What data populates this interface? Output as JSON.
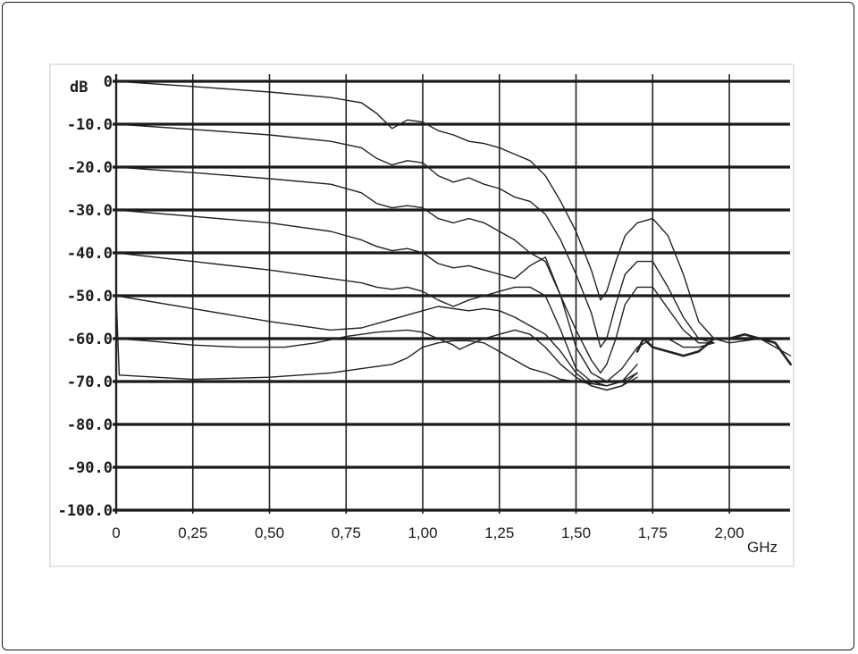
{
  "chart_data": {
    "type": "line",
    "title": "",
    "ylabel": "dB",
    "xlabel": "GHz",
    "x_unit": "GHz",
    "y_unit": "dB",
    "xlim": [
      0,
      2.2
    ],
    "ylim": [
      -100,
      0
    ],
    "grid": true,
    "legend": "none",
    "y_ticks": [
      0,
      -10,
      -20,
      -30,
      -40,
      -50,
      -60,
      -70,
      -80,
      -90,
      -100
    ],
    "y_tick_labels": [
      "0",
      "-10.0",
      "-20.0",
      "-30.0",
      "-40.0",
      "-50.0",
      "-60.0",
      "-70.0",
      "-80.0",
      "-90.0",
      "-100.0"
    ],
    "x_ticks": [
      0,
      0.25,
      0.5,
      0.75,
      1.0,
      1.25,
      1.5,
      1.75,
      2.0
    ],
    "x_tick_labels": [
      "0",
      "0,25",
      "0,50",
      "0,75",
      "1,00",
      "1,25",
      "1,50",
      "1,75",
      "2,00"
    ],
    "series": [
      {
        "x": [
          0,
          0.25,
          0.5,
          0.7,
          0.8,
          0.85,
          0.9,
          0.95,
          1.0,
          1.05,
          1.1,
          1.15,
          1.2,
          1.25,
          1.3,
          1.35,
          1.4,
          1.45,
          1.5,
          1.55,
          1.58,
          1.6,
          1.63,
          1.66,
          1.7,
          1.75,
          1.8,
          1.85,
          1.9,
          1.95,
          2.0,
          2.1,
          2.2
        ],
        "y": [
          0,
          -1.2,
          -2.5,
          -3.8,
          -5,
          -7.5,
          -11,
          -9,
          -9.5,
          -11.5,
          -12.5,
          -14,
          -14.5,
          -15.5,
          -17,
          -18.5,
          -22,
          -28,
          -35,
          -44,
          -51,
          -49,
          -42,
          -36,
          -33,
          -32,
          -36,
          -45,
          -56,
          -60,
          -61,
          -60,
          -64
        ]
      },
      {
        "x": [
          0,
          0.25,
          0.5,
          0.7,
          0.8,
          0.85,
          0.9,
          0.95,
          1.0,
          1.05,
          1.1,
          1.15,
          1.2,
          1.25,
          1.3,
          1.35,
          1.4,
          1.45,
          1.5,
          1.55,
          1.58,
          1.6,
          1.63,
          1.66,
          1.7,
          1.75,
          1.8,
          1.85,
          1.9,
          1.95
        ],
        "y": [
          -10,
          -11.2,
          -12.5,
          -14,
          -15.5,
          -18,
          -19.5,
          -18.5,
          -19,
          -22,
          -23.5,
          -22.5,
          -24,
          -25,
          -27,
          -28,
          -31,
          -37,
          -45,
          -54,
          -62,
          -60,
          -52,
          -45,
          -42,
          -42,
          -48,
          -55,
          -60,
          -61
        ]
      },
      {
        "x": [
          0,
          0.25,
          0.5,
          0.7,
          0.8,
          0.85,
          0.9,
          0.95,
          1.0,
          1.05,
          1.1,
          1.15,
          1.2,
          1.25,
          1.3,
          1.35,
          1.4,
          1.45,
          1.5,
          1.55,
          1.58,
          1.6,
          1.63,
          1.66,
          1.7,
          1.75,
          1.8,
          1.85,
          1.9,
          1.95
        ],
        "y": [
          -20,
          -21.3,
          -22.7,
          -24,
          -26,
          -28.5,
          -29.5,
          -29,
          -29.5,
          -32,
          -33,
          -32,
          -33,
          -35,
          -37,
          -40,
          -42,
          -50,
          -58,
          -65,
          -68,
          -66,
          -60,
          -52,
          -48,
          -48,
          -53,
          -58,
          -61,
          -61
        ]
      },
      {
        "x": [
          0,
          0.25,
          0.5,
          0.7,
          0.8,
          0.85,
          0.9,
          0.95,
          1.0,
          1.05,
          1.1,
          1.15,
          1.2,
          1.25,
          1.3,
          1.35,
          1.4,
          1.45,
          1.5,
          1.55,
          1.6,
          1.65,
          1.7,
          1.75,
          1.8,
          1.85,
          1.9,
          1.95
        ],
        "y": [
          -30,
          -31.5,
          -33,
          -35,
          -37,
          -38.5,
          -39.5,
          -39,
          -40,
          -42.5,
          -43.5,
          -43,
          -44,
          -45,
          -46,
          -43,
          -41,
          -50,
          -62,
          -68,
          -70,
          -67,
          -62,
          -60,
          -60,
          -62,
          -62,
          -61
        ]
      },
      {
        "x": [
          0,
          0.25,
          0.5,
          0.7,
          0.8,
          0.85,
          0.9,
          0.95,
          1.0,
          1.05,
          1.1,
          1.15,
          1.2,
          1.25,
          1.3,
          1.35,
          1.4,
          1.45,
          1.5,
          1.55,
          1.6,
          1.65,
          1.7
        ],
        "y": [
          -40,
          -42,
          -44,
          -46,
          -47,
          -48,
          -48.5,
          -48,
          -49,
          -51,
          -52.5,
          -51,
          -50,
          -49,
          -48,
          -48,
          -50,
          -58,
          -67,
          -70,
          -71,
          -70,
          -66
        ]
      },
      {
        "x": [
          0,
          0.25,
          0.5,
          0.7,
          0.8,
          0.85,
          0.9,
          0.95,
          1.0,
          1.05,
          1.1,
          1.15,
          1.2,
          1.25,
          1.3,
          1.35,
          1.4,
          1.45,
          1.5,
          1.55,
          1.6,
          1.65,
          1.7
        ],
        "y": [
          -50,
          -53,
          -56,
          -58,
          -57.5,
          -56.5,
          -55.5,
          -54.5,
          -53.5,
          -52.5,
          -53,
          -53.5,
          -53,
          -53.5,
          -55,
          -57,
          -59,
          -63,
          -68,
          -71,
          -72,
          -71,
          -68
        ]
      },
      {
        "x": [
          0,
          0.1,
          0.25,
          0.4,
          0.55,
          0.65,
          0.75,
          0.85,
          0.95,
          1.0,
          1.05,
          1.1,
          1.12,
          1.15,
          1.2,
          1.25,
          1.3,
          1.35,
          1.4,
          1.45,
          1.5,
          1.55,
          1.6,
          1.65,
          1.7
        ],
        "y": [
          -60,
          -60.5,
          -61.5,
          -62,
          -62,
          -61,
          -59.5,
          -58.5,
          -58,
          -58.5,
          -60,
          -61.5,
          -62.5,
          -61.5,
          -60,
          -59,
          -58,
          -59,
          -62,
          -66,
          -69,
          -71,
          -72,
          -71,
          -69
        ]
      },
      {
        "x": [
          0,
          0.01,
          0.25,
          0.5,
          0.7,
          0.8,
          0.9,
          0.95,
          1.0,
          1.05,
          1.1,
          1.15,
          1.2,
          1.25,
          1.3,
          1.35,
          1.4,
          1.45,
          1.5,
          1.55,
          1.6,
          1.65,
          1.7
        ],
        "y": [
          -50,
          -68.5,
          -69.5,
          -69,
          -68,
          -67,
          -66,
          -64.5,
          -62,
          -61,
          -60.5,
          -60.5,
          -61,
          -63,
          -65,
          -67,
          -68,
          -69.5,
          -70,
          -70.5,
          -71,
          -70,
          -68
        ]
      },
      {
        "x": [
          1.7,
          1.72,
          1.75,
          1.8,
          1.85,
          1.9,
          1.95,
          2.0,
          2.05,
          2.1,
          2.15,
          2.2
        ],
        "y": [
          -63,
          -60,
          -62,
          -63,
          -64,
          -63,
          -60,
          -60,
          -59,
          -60,
          -61,
          -66
        ]
      }
    ]
  }
}
